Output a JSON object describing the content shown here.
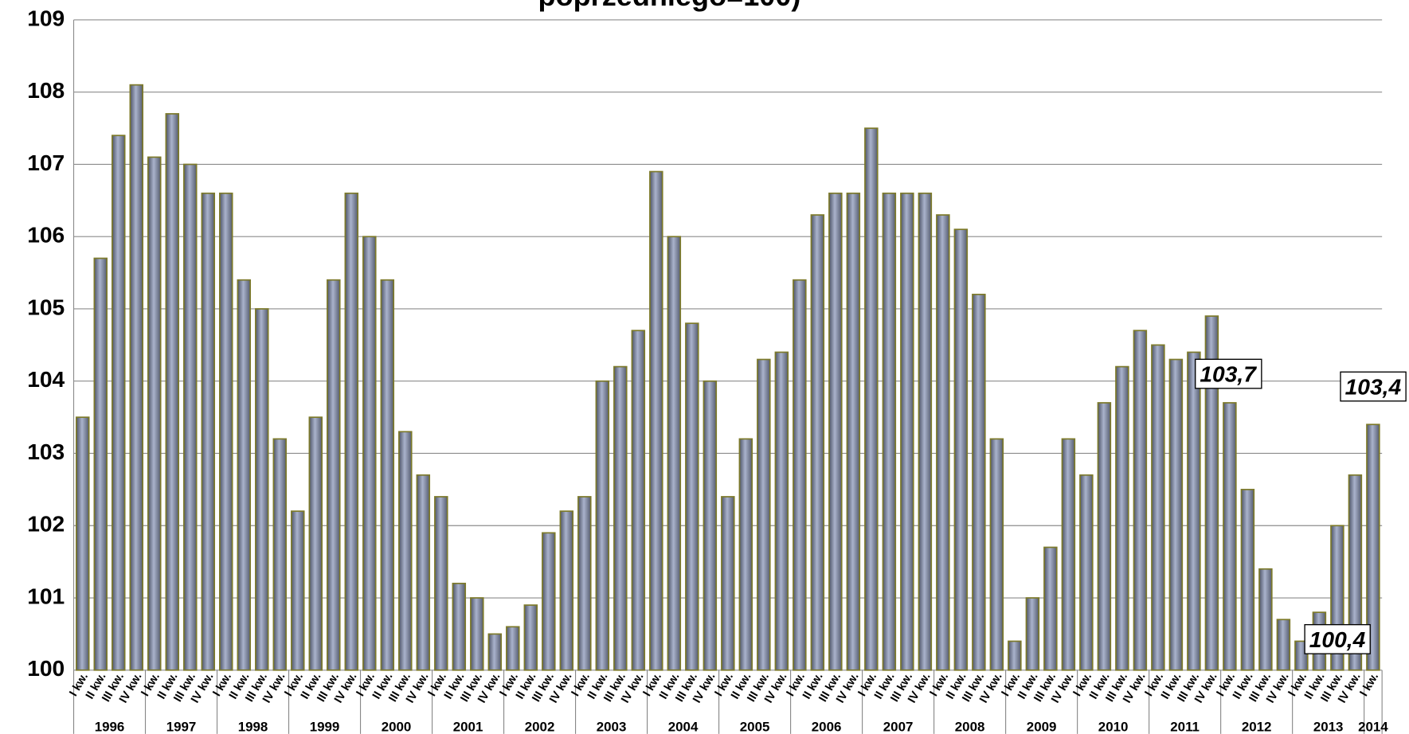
{
  "chart_data": {
    "type": "bar",
    "title": "poprzedniego=100)",
    "categories": [
      "I kw.",
      "II kw.",
      "III kw.",
      "IV kw.",
      "I kw.",
      "II kw.",
      "III kw.",
      "IV kw.",
      "I kw.",
      "II kw.",
      "III kw.",
      "IV kw.",
      "I kw.",
      "II kw.",
      "III kw.",
      "IV kw.",
      "I kw.",
      "II kw.",
      "III kw.",
      "IV kw.",
      "I kw.",
      "II kw.",
      "III kw.",
      "IV kw.",
      "I kw.",
      "II kw.",
      "III kw.",
      "IV kw.",
      "I kw.",
      "II kw.",
      "III kw.",
      "IV kw.",
      "I kw.",
      "II kw.",
      "III kw.",
      "IV kw.",
      "I kw.",
      "II kw.",
      "III kw.",
      "IV kw.",
      "I kw.",
      "II kw.",
      "III kw.",
      "IV kw.",
      "I kw.",
      "II kw.",
      "III kw.",
      "IV kw.",
      "I kw.",
      "II kw.",
      "III kw.",
      "IV kw.",
      "I kw.",
      "II kw.",
      "III kw.",
      "IV kw.",
      "I kw.",
      "II kw.",
      "III kw.",
      "IV kw.",
      "I kw.",
      "II kw.",
      "III kw.",
      "IV kw.",
      "I kw.",
      "II kw.",
      "III kw.",
      "IV kw.",
      "I kw.",
      "II kw.",
      "III kw.",
      "IV kw.",
      "I kw."
    ],
    "years": [
      "1996",
      "1997",
      "1998",
      "1999",
      "2000",
      "2001",
      "2002",
      "2003",
      "2004",
      "2005",
      "2006",
      "2007",
      "2008",
      "2009",
      "2010",
      "2011",
      "2012",
      "2013",
      "2014"
    ],
    "values": [
      103.5,
      105.7,
      107.4,
      108.1,
      107.1,
      107.7,
      107.0,
      106.6,
      106.6,
      105.4,
      105.0,
      103.2,
      102.2,
      103.5,
      105.4,
      106.6,
      106.0,
      105.4,
      103.3,
      102.7,
      102.4,
      101.2,
      101.0,
      100.5,
      100.6,
      100.9,
      101.9,
      102.2,
      102.4,
      104.0,
      104.2,
      104.7,
      106.9,
      106.0,
      104.8,
      104.0,
      102.4,
      103.2,
      104.3,
      104.4,
      105.4,
      106.3,
      106.6,
      106.6,
      107.5,
      106.6,
      106.6,
      106.6,
      106.3,
      106.1,
      105.2,
      103.2,
      100.4,
      101.0,
      101.7,
      103.2,
      102.7,
      103.7,
      104.2,
      104.7,
      104.5,
      104.3,
      104.4,
      104.9,
      103.7,
      102.5,
      101.4,
      100.7,
      100.4,
      100.8,
      102.0,
      102.7,
      103.4
    ],
    "value_labels": [
      null,
      null,
      null,
      null,
      null,
      null,
      null,
      null,
      null,
      null,
      null,
      null,
      null,
      null,
      null,
      null,
      null,
      null,
      null,
      null,
      null,
      null,
      null,
      null,
      null,
      null,
      null,
      null,
      null,
      null,
      null,
      null,
      null,
      null,
      null,
      null,
      null,
      null,
      null,
      null,
      null,
      null,
      null,
      null,
      null,
      null,
      null,
      null,
      null,
      null,
      null,
      null,
      null,
      null,
      null,
      null,
      null,
      null,
      null,
      null,
      null,
      null,
      null,
      null,
      "103,7",
      null,
      null,
      null,
      "100,4",
      null,
      null,
      null,
      "103,4"
    ],
    "color": "#8e97b0",
    "ylim": [
      100,
      109
    ],
    "yticks": [
      100,
      101,
      102,
      103,
      104,
      105,
      106,
      107,
      108,
      109
    ],
    "grid": true
  }
}
